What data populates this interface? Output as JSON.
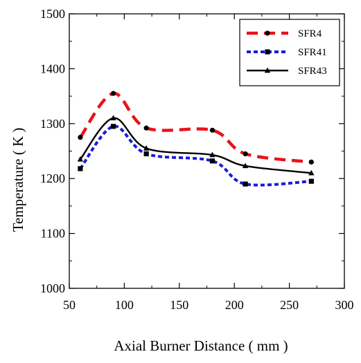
{
  "chart_data": {
    "type": "line",
    "title": "",
    "xlabel": "Axial Burner Distance ( mm )",
    "ylabel": "Temperature ( K )",
    "xlim": [
      50,
      300
    ],
    "ylim": [
      1000,
      1500
    ],
    "xticks": [
      50,
      100,
      150,
      200,
      250,
      300
    ],
    "yticks": [
      1000,
      1100,
      1200,
      1300,
      1400,
      1500
    ],
    "grid": false,
    "legend_position": "top-right",
    "x": [
      60,
      90,
      120,
      180,
      210,
      270
    ],
    "series": [
      {
        "name": "SFR4",
        "values": [
          1275,
          1355,
          1292,
          1288,
          1245,
          1230
        ],
        "color": "#e8121b",
        "marker": "circle",
        "dash": "dashed"
      },
      {
        "name": "SFR41",
        "values": [
          1218,
          1295,
          1245,
          1232,
          1190,
          1195
        ],
        "color": "#1a1adb",
        "marker": "square",
        "dash": "dotted"
      },
      {
        "name": "SFR43",
        "values": [
          1235,
          1310,
          1255,
          1243,
          1223,
          1210
        ],
        "color": "#000000",
        "marker": "triangle",
        "dash": "solid"
      }
    ]
  }
}
